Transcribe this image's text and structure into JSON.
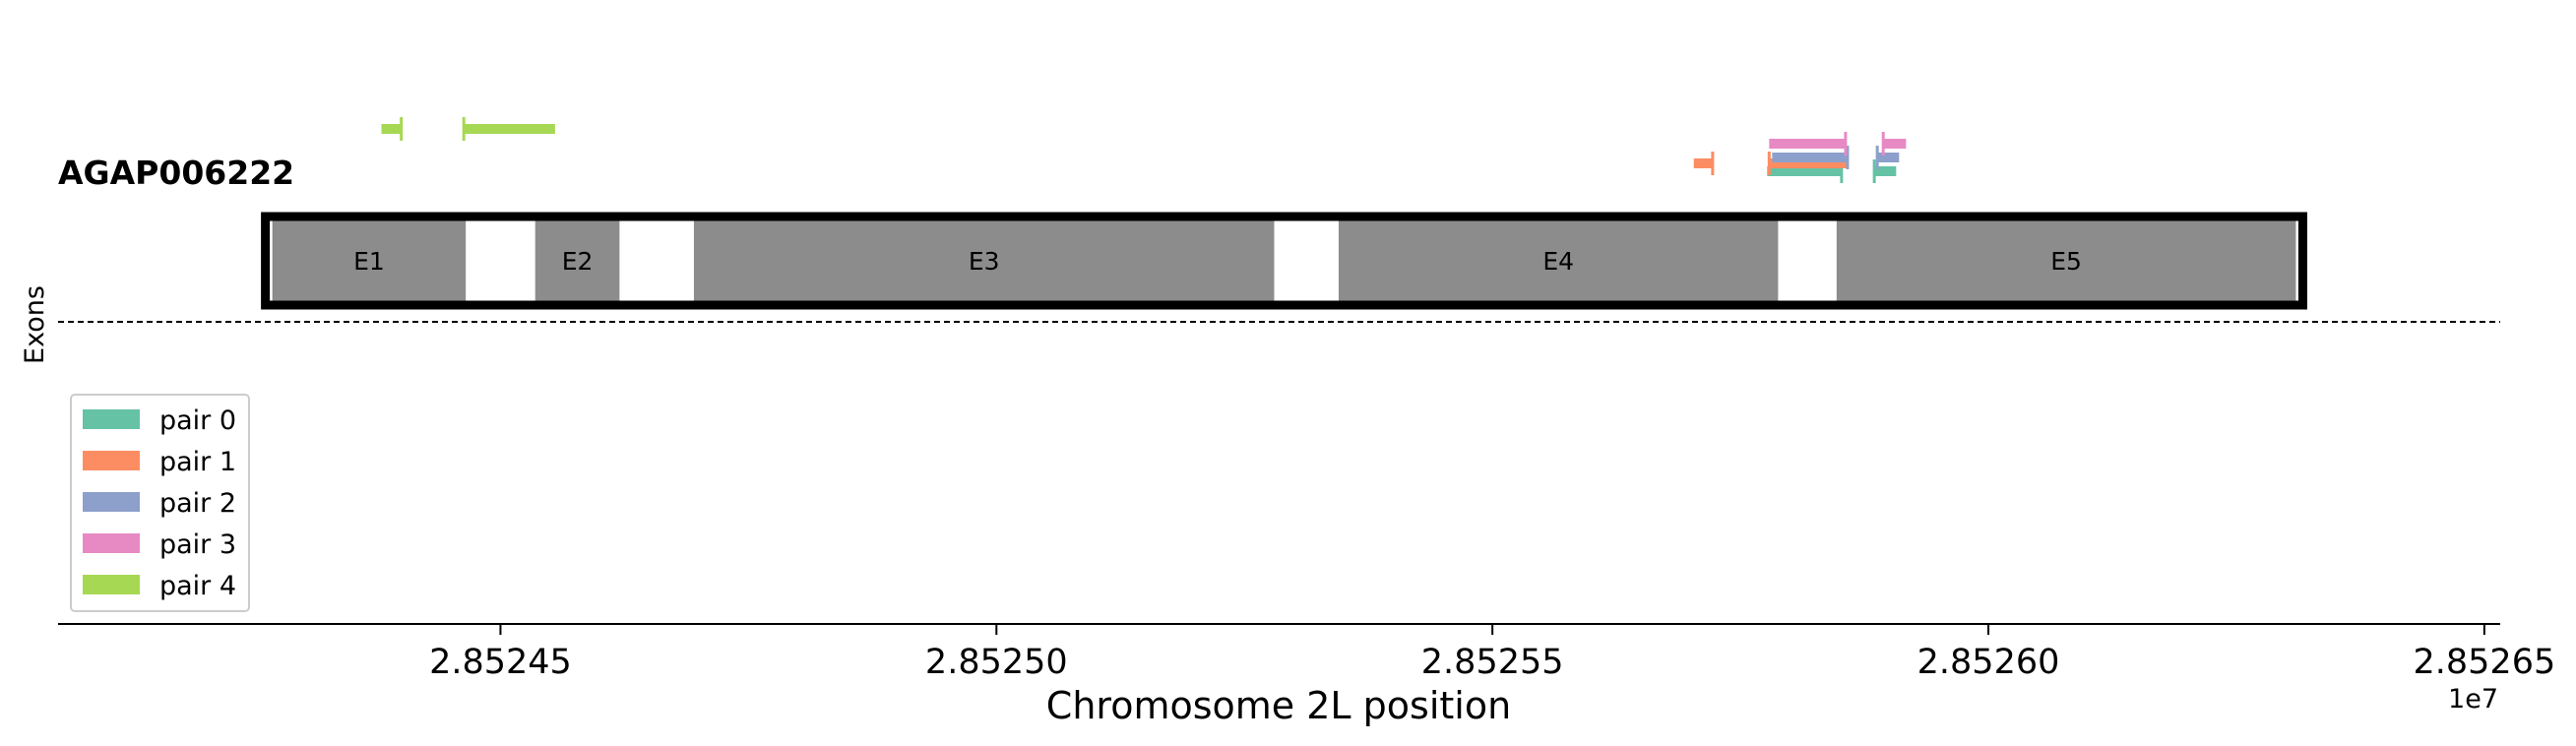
{
  "chart_data": {
    "type": "genomic_track",
    "gene": "AGAP006222",
    "ylabel": "Exons",
    "xlabel": "Chromosome 2L position",
    "x_offset_label": "1e7",
    "xlim": [
      28524054,
      28526516
    ],
    "x_ticks": [
      28524500,
      28525000,
      28525500,
      28526000,
      28526500
    ],
    "x_tick_labels": [
      "2.85245",
      "2.85250",
      "2.85255",
      "2.85260",
      "2.85265"
    ],
    "exons": [
      {
        "label": "E1",
        "start": 28524270,
        "end": 28524465
      },
      {
        "label": "E2",
        "start": 28524535,
        "end": 28524620
      },
      {
        "label": "E3",
        "start": 28524695,
        "end": 28525280
      },
      {
        "label": "E4",
        "start": 28525345,
        "end": 28525788
      },
      {
        "label": "E5",
        "start": 28525847,
        "end": 28526310
      }
    ],
    "gene_box": {
      "start": 28524263,
      "end": 28526317
    },
    "legend": {
      "placement": "lower-left",
      "entries": [
        "pair 0",
        "pair 1",
        "pair 2",
        "pair 3",
        "pair 4"
      ]
    },
    "pairs": [
      {
        "name": "pair 0",
        "color": "#66c2a5",
        "forward": {
          "start": 28525777,
          "end": 28525852
        },
        "reverse": {
          "start": 28525885,
          "end": 28525907
        }
      },
      {
        "name": "pair 1",
        "color": "#fc8d62",
        "forward": {
          "start": 28525703,
          "end": 28525722
        },
        "reverse": {
          "start": 28525779,
          "end": 28525858
        }
      },
      {
        "name": "pair 2",
        "color": "#8da0cb",
        "forward": {
          "start": 28525782,
          "end": 28525858
        },
        "reverse": {
          "start": 28525888,
          "end": 28525910
        }
      },
      {
        "name": "pair 3",
        "color": "#e78ac3",
        "forward": {
          "start": 28525779,
          "end": 28525856
        },
        "reverse": {
          "start": 28525894,
          "end": 28525917
        }
      },
      {
        "name": "pair 4",
        "color": "#a6d854",
        "forward": {
          "start": 28524380,
          "end": 28524400
        },
        "reverse": {
          "start": 28524463,
          "end": 28524555
        }
      }
    ]
  }
}
